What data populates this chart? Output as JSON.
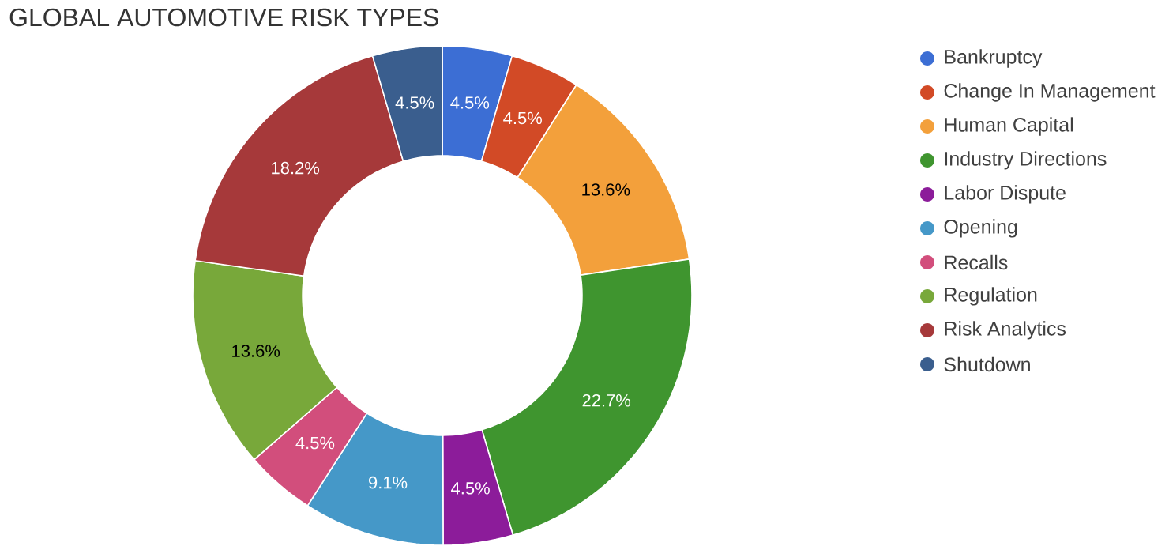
{
  "chart_data": {
    "type": "donut",
    "title": "GLOBAL AUTOMOTIVE RISK TYPES",
    "categories": [
      "Bankruptcy",
      "Change In Management",
      "Human Capital",
      "Industry Directions",
      "Labor Dispute",
      "Opening",
      "Recalls",
      "Regulation",
      "Risk Analytics",
      "Shutdown"
    ],
    "values": [
      4.5,
      4.5,
      13.6,
      22.7,
      4.5,
      9.1,
      4.5,
      13.6,
      18.2,
      4.5
    ],
    "value_labels": [
      "4.5%",
      "4.5%",
      "13.6%",
      "22.7%",
      "4.5%",
      "9.1%",
      "4.5%",
      "13.6%",
      "18.2%",
      "4.5%"
    ],
    "colors": [
      "#3c6ed4",
      "#d24a26",
      "#f3a03b",
      "#3f952f",
      "#8c1c9a",
      "#4598c8",
      "#d24e7c",
      "#78a83a",
      "#a6393a",
      "#3a5e8e"
    ],
    "legend": "right"
  }
}
